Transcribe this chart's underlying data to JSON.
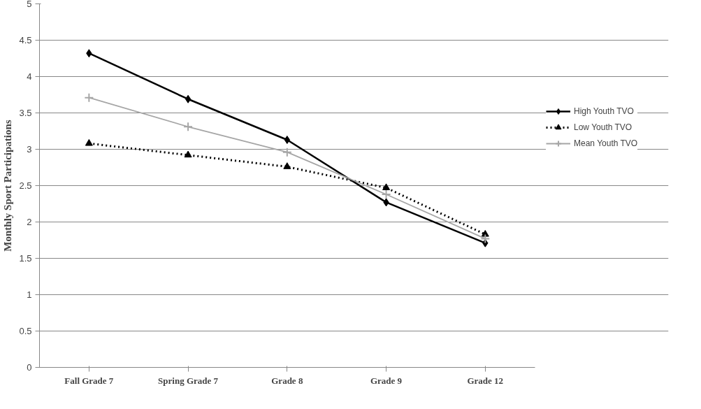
{
  "chart_data": {
    "type": "line",
    "ylabel": "Monthly Sport Participations",
    "categories": [
      "Fall Grade 7",
      "Spring Grade 7",
      "Grade 8",
      "Grade 9",
      "Grade 12"
    ],
    "series": [
      {
        "name": "High Youth TVO",
        "color": "#000000",
        "marker": "diamond",
        "line_style": "solid",
        "values": [
          4.32,
          3.69,
          3.13,
          2.27,
          1.71
        ]
      },
      {
        "name": "Low Youth TVO",
        "color": "#000000",
        "marker": "triangle",
        "line_style": "dotted",
        "values": [
          3.08,
          2.92,
          2.76,
          2.47,
          1.83
        ]
      },
      {
        "name": "Mean Youth TVO",
        "color": "#a6a6a6",
        "marker": "cross",
        "line_style": "solid",
        "values": [
          3.71,
          3.31,
          2.96,
          2.38,
          1.77
        ]
      }
    ],
    "ylim": [
      0,
      5
    ],
    "yticks": [
      0,
      0.5,
      1,
      1.5,
      2,
      2.5,
      3,
      3.5,
      4,
      4.5,
      5
    ],
    "grid": "y",
    "legend": "right"
  }
}
